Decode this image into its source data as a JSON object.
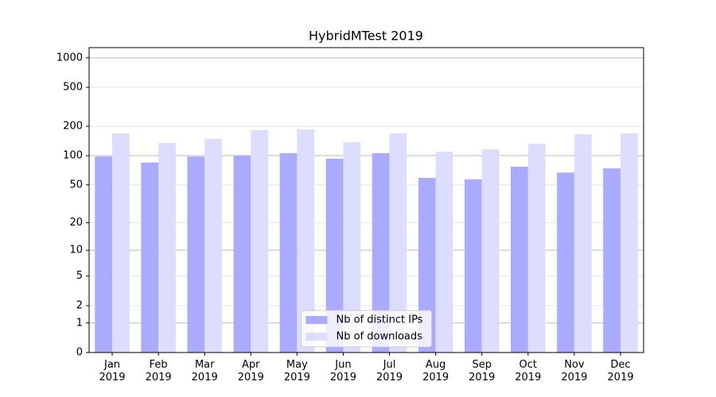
{
  "chart_data": {
    "type": "bar",
    "title": "HybridMTest 2019",
    "categories": [
      "Jan\n2019",
      "Feb\n2019",
      "Mar\n2019",
      "Apr\n2019",
      "May\n2019",
      "Jun\n2019",
      "Jul\n2019",
      "Aug\n2019",
      "Sep\n2019",
      "Oct\n2019",
      "Nov\n2019",
      "Dec\n2019"
    ],
    "series": [
      {
        "name": "Nb of distinct IPs",
        "color": "#aaaaff",
        "values": [
          98,
          85,
          98,
          100,
          106,
          93,
          106,
          59,
          57,
          77,
          67,
          74
        ]
      },
      {
        "name": "Nb of downloads",
        "color": "#ddddff",
        "values": [
          169,
          135,
          149,
          183,
          186,
          138,
          169,
          110,
          116,
          133,
          166,
          169
        ]
      }
    ],
    "yscale": "log1p",
    "ylim": [
      0,
      1270
    ],
    "yticks": [
      0,
      1,
      2,
      5,
      10,
      20,
      50,
      100,
      200,
      500,
      1000
    ],
    "grid": true,
    "legend": "lower center"
  }
}
